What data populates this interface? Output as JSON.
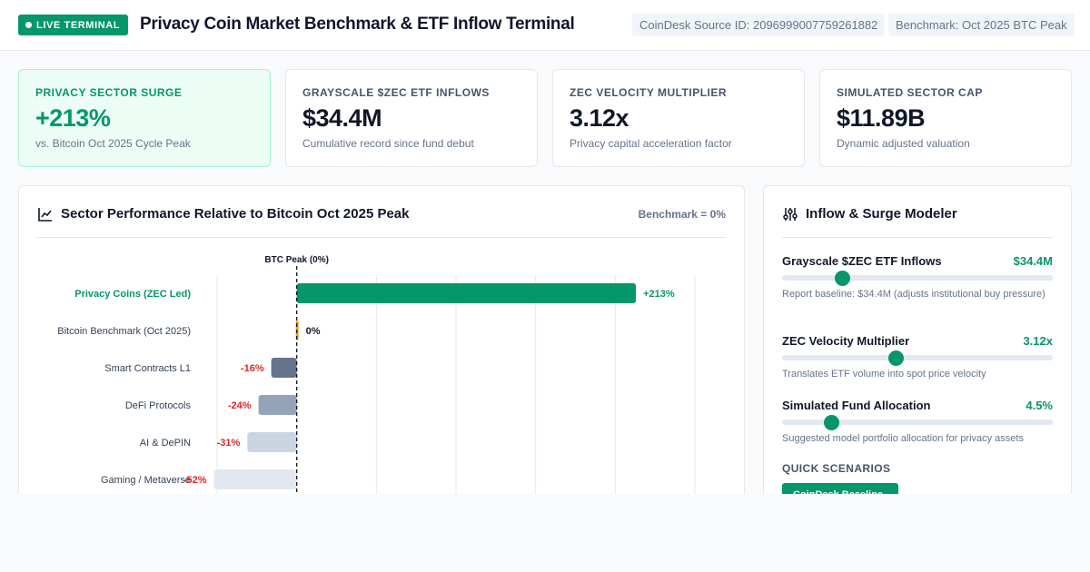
{
  "header": {
    "badge": "LIVE TERMINAL",
    "title": "Privacy Coin Market Benchmark & ETF Inflow Terminal",
    "source_chip": "CoinDesk Source ID: 2096999007759261882",
    "benchmark_chip": "Benchmark: Oct 2025 BTC Peak"
  },
  "kpis": [
    {
      "label": "PRIVACY SECTOR SURGE",
      "value": "+213%",
      "sub": "vs. Bitcoin Oct 2025 Cycle Peak"
    },
    {
      "label": "GRAYSCALE $ZEC ETF INFLOWS",
      "value": "$34.4M",
      "sub": "Cumulative record since fund debut"
    },
    {
      "label": "ZEC VELOCITY MULTIPLIER",
      "value": "3.12x",
      "sub": "Privacy capital acceleration factor"
    },
    {
      "label": "SIMULATED SECTOR CAP",
      "value": "$11.89B",
      "sub": "Dynamic adjusted valuation"
    }
  ],
  "chart_panel": {
    "title": "Sector Performance Relative to Bitcoin Oct 2025 Peak",
    "benchmark_label": "Benchmark = 0%"
  },
  "chart_data": {
    "type": "bar",
    "orientation": "horizontal",
    "reference_line_label": "BTC Peak (0%)",
    "reference_value": 0,
    "xlim": [
      -50,
      250
    ],
    "categories": [
      "Privacy Coins (ZEC Led)",
      "Bitcoin Benchmark (Oct 2025)",
      "Smart Contracts L1",
      "DeFi Protocols",
      "AI & DePIN",
      "Gaming / Metaverse"
    ],
    "values": [
      213,
      0,
      -16,
      -24,
      -31,
      -52
    ],
    "value_labels": [
      "+213%",
      "0%",
      "-16%",
      "-24%",
      "-31%",
      "-52%"
    ],
    "colors": [
      "#059669",
      "#f59e0b",
      "#64748b",
      "#94a3b8",
      "#cbd5e1",
      "#e2e8f0"
    ],
    "label_colors": [
      "#059669",
      "#0f172a",
      "#dc2626",
      "#dc2626",
      "#dc2626",
      "#dc2626"
    ],
    "grid": true
  },
  "modeler": {
    "title": "Inflow & Surge Modeler",
    "controls": [
      {
        "label": "Grayscale $ZEC ETF Inflows",
        "value": "$34.4M",
        "level": 0.22,
        "help": "Report baseline: $34.4M (adjusts institutional buy pressure)"
      },
      {
        "label": "ZEC Velocity Multiplier",
        "value": "3.12x",
        "level": 0.42,
        "help": "Translates ETF volume into spot price velocity"
      },
      {
        "label": "Simulated Fund Allocation",
        "value": "4.5%",
        "level": 0.18,
        "help": "Suggested model portfolio allocation for privacy assets"
      }
    ],
    "scenarios_title": "QUICK SCENARIOS",
    "scenario_button": "CoinDesk Baseline"
  },
  "colors": {
    "accent": "#059669",
    "negative": "#dc2626",
    "benchmark": "#f59e0b"
  },
  "icons": {
    "chart": "line-chart-icon",
    "modeler": "sliders-icon",
    "live": "live-dot-icon"
  }
}
